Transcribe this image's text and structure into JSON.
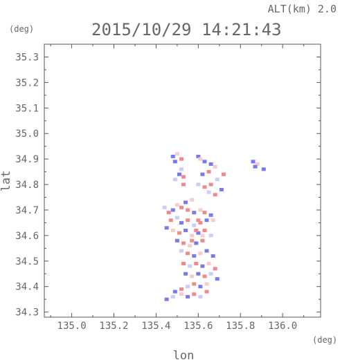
{
  "header": {
    "alt_label": "ALT(km) 2.0",
    "timestamp": "2015/10/29 14:21:43"
  },
  "chart_data": {
    "type": "scatter",
    "title": "2015/10/29 14:21:43",
    "subtitle": "ALT(km) 2.0",
    "xlabel": "lon",
    "ylabel": "lat",
    "x_unit": "(deg)",
    "y_unit": "(deg)",
    "xlim": [
      134.87,
      136.18
    ],
    "ylim": [
      34.28,
      35.35
    ],
    "xticks": [
      135.0,
      135.2,
      135.4,
      135.6,
      135.8,
      136.0
    ],
    "xtick_labels": [
      "135.0",
      "135.2",
      "135.4",
      "135.6",
      "135.8",
      "136.0"
    ],
    "yticks": [
      34.3,
      34.4,
      34.5,
      34.6,
      34.7,
      34.8,
      34.9,
      35.0,
      35.1,
      35.2,
      35.3
    ],
    "ytick_labels": [
      "34.3",
      "34.4",
      "34.5",
      "34.6",
      "34.7",
      "34.8",
      "34.9",
      "35.0",
      "35.1",
      "35.2",
      "35.3"
    ],
    "grid": false,
    "colors": {
      "positive": "#f08a8a",
      "negative": "#7878f0",
      "light_positive": "#f8cccc",
      "light_negative": "#ccccf8"
    },
    "points": [
      [
        135.48,
        34.91,
        -1
      ],
      [
        135.5,
        34.92,
        1
      ],
      [
        135.52,
        34.9,
        1
      ],
      [
        135.49,
        34.89,
        -1
      ],
      [
        135.52,
        34.86,
        -1
      ],
      [
        135.53,
        34.83,
        1
      ],
      [
        135.51,
        34.84,
        -1
      ],
      [
        135.49,
        34.82,
        -1
      ],
      [
        135.53,
        34.8,
        1
      ],
      [
        135.6,
        34.91,
        -1
      ],
      [
        135.61,
        34.9,
        1
      ],
      [
        135.63,
        34.89,
        -1
      ],
      [
        135.66,
        34.88,
        -1
      ],
      [
        135.68,
        34.87,
        1
      ],
      [
        135.65,
        34.85,
        1
      ],
      [
        135.62,
        34.84,
        -1
      ],
      [
        135.6,
        34.8,
        -1
      ],
      [
        135.63,
        34.79,
        1
      ],
      [
        135.66,
        34.8,
        1
      ],
      [
        135.69,
        34.82,
        -1
      ],
      [
        135.71,
        34.78,
        -1
      ],
      [
        135.68,
        34.76,
        1
      ],
      [
        135.65,
        34.77,
        -1
      ],
      [
        135.72,
        34.84,
        1
      ],
      [
        135.86,
        34.89,
        -1
      ],
      [
        135.88,
        34.88,
        1
      ],
      [
        135.87,
        34.87,
        -1
      ],
      [
        135.91,
        34.86,
        -1
      ],
      [
        135.44,
        34.71,
        -1
      ],
      [
        135.46,
        34.69,
        1
      ],
      [
        135.48,
        34.7,
        -1
      ],
      [
        135.5,
        34.72,
        1
      ],
      [
        135.52,
        34.71,
        1
      ],
      [
        135.54,
        34.73,
        -1
      ],
      [
        135.57,
        34.74,
        1
      ],
      [
        135.55,
        34.7,
        1
      ],
      [
        135.58,
        34.69,
        -1
      ],
      [
        135.61,
        34.7,
        1
      ],
      [
        135.63,
        34.69,
        1
      ],
      [
        135.66,
        34.68,
        -1
      ],
      [
        135.67,
        34.66,
        1
      ],
      [
        135.64,
        34.66,
        -1
      ],
      [
        135.61,
        34.65,
        1
      ],
      [
        135.58,
        34.64,
        -1
      ],
      [
        135.55,
        34.66,
        1
      ],
      [
        135.52,
        34.65,
        -1
      ],
      [
        135.5,
        34.67,
        -1
      ],
      [
        135.47,
        34.66,
        1
      ],
      [
        135.45,
        34.63,
        -1
      ],
      [
        135.48,
        34.62,
        1
      ],
      [
        135.51,
        34.61,
        1
      ],
      [
        135.54,
        34.62,
        -1
      ],
      [
        135.57,
        34.6,
        1
      ],
      [
        135.6,
        34.61,
        -1
      ],
      [
        135.63,
        34.62,
        1
      ],
      [
        135.66,
        34.6,
        -1
      ],
      [
        135.62,
        34.58,
        1
      ],
      [
        135.59,
        34.57,
        -1
      ],
      [
        135.56,
        34.56,
        1
      ],
      [
        135.53,
        34.57,
        1
      ],
      [
        135.5,
        34.58,
        -1
      ],
      [
        135.52,
        34.54,
        -1
      ],
      [
        135.55,
        34.53,
        1
      ],
      [
        135.58,
        34.52,
        -1
      ],
      [
        135.61,
        34.53,
        1
      ],
      [
        135.64,
        34.54,
        -1
      ],
      [
        135.67,
        34.52,
        -1
      ],
      [
        135.65,
        34.49,
        1
      ],
      [
        135.62,
        34.48,
        -1
      ],
      [
        135.59,
        34.49,
        1
      ],
      [
        135.56,
        34.48,
        -1
      ],
      [
        135.53,
        34.49,
        1
      ],
      [
        135.54,
        34.45,
        -1
      ],
      [
        135.57,
        34.44,
        1
      ],
      [
        135.6,
        34.45,
        -1
      ],
      [
        135.63,
        34.44,
        1
      ],
      [
        135.66,
        34.45,
        -1
      ],
      [
        135.68,
        34.47,
        1
      ],
      [
        135.69,
        34.43,
        -1
      ],
      [
        135.64,
        34.41,
        1
      ],
      [
        135.61,
        34.4,
        -1
      ],
      [
        135.58,
        34.41,
        1
      ],
      [
        135.55,
        34.4,
        -1
      ],
      [
        135.52,
        34.39,
        1
      ],
      [
        135.49,
        34.38,
        -1
      ],
      [
        135.52,
        34.37,
        1
      ],
      [
        135.55,
        34.36,
        -1
      ],
      [
        135.58,
        34.37,
        1
      ],
      [
        135.61,
        34.36,
        -1
      ],
      [
        135.64,
        34.38,
        1
      ],
      [
        135.45,
        34.35,
        -1
      ],
      [
        135.48,
        34.36,
        -1
      ],
      [
        135.6,
        34.66,
        1
      ],
      [
        135.59,
        34.62,
        1
      ],
      [
        135.62,
        34.6,
        1
      ],
      [
        135.57,
        34.58,
        1
      ]
    ]
  }
}
